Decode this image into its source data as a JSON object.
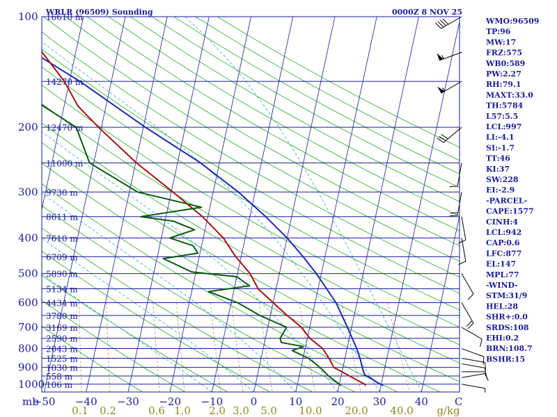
{
  "header": {
    "station": "WRLR (96509) Sounding",
    "time": "0000Z  8 NOV 25"
  },
  "chart_data": {
    "type": "skew-t",
    "title": "WRLR (96509) Sounding",
    "valid_time": "0000Z  8 NOV 25",
    "pressure_ticks": [
      100,
      200,
      300,
      400,
      500,
      600,
      700,
      800,
      900,
      1000
    ],
    "pressure_unit_label": "mb",
    "temperature_ticks": [
      -50,
      -40,
      -30,
      -20,
      -10,
      0,
      10,
      20,
      30,
      40
    ],
    "temperature_tick_labels": [
      "−50",
      "−40",
      "−30",
      "−20",
      "−10",
      "0",
      "10",
      "20",
      "30",
      "40"
    ],
    "temp_unit_label": "C",
    "mixing_ratio_ticks": [
      0.1,
      0.2,
      0.6,
      1.0,
      2.0,
      3.0,
      5.0,
      10.0,
      20.0,
      40.0
    ],
    "mixing_ratio_tick_labels": [
      "0.1",
      "0.2",
      "0.6",
      "1.0",
      "2.0",
      "3.0",
      "5.0",
      "10.0",
      "20.0",
      "40.0"
    ],
    "mixing_ratio_unit_label": "g/kg",
    "height_labels": [
      {
        "p": 100,
        "label": "16610 m"
      },
      {
        "p": 150,
        "label": "14270 m"
      },
      {
        "p": 200,
        "label": "12470 m"
      },
      {
        "p": 250,
        "label": "11000 m"
      },
      {
        "p": 300,
        "label": "9730 m"
      },
      {
        "p": 350,
        "label": "8611 m"
      },
      {
        "p": 400,
        "label": "7610 m"
      },
      {
        "p": 450,
        "label": "6709 m"
      },
      {
        "p": 500,
        "label": "5890 m"
      },
      {
        "p": 550,
        "label": "5134 m"
      },
      {
        "p": 600,
        "label": "4434 m"
      },
      {
        "p": 650,
        "label": "3780 m"
      },
      {
        "p": 700,
        "label": "3169 m"
      },
      {
        "p": 750,
        "label": "2590 m"
      },
      {
        "p": 800,
        "label": "2043 m"
      },
      {
        "p": 850,
        "label": "1525 m"
      },
      {
        "p": 900,
        "label": "1030 m"
      },
      {
        "p": 950,
        "label": "558 m"
      },
      {
        "p": 1000,
        "label": "106 m"
      }
    ],
    "temperature_profile": [
      [
        1008,
        26.4
      ],
      [
        1000,
        26.0
      ],
      [
        950,
        22.0
      ],
      [
        900,
        17.8
      ],
      [
        850,
        16.2
      ],
      [
        800,
        14.2
      ],
      [
        750,
        10.6
      ],
      [
        700,
        8.0
      ],
      [
        650,
        4.0
      ],
      [
        600,
        0.0
      ],
      [
        550,
        -4.3
      ],
      [
        500,
        -7.0
      ],
      [
        450,
        -11.3
      ],
      [
        400,
        -15.2
      ],
      [
        350,
        -21.3
      ],
      [
        300,
        -29.6
      ],
      [
        250,
        -39.8
      ],
      [
        200,
        -50.7
      ],
      [
        175,
        -56.7
      ],
      [
        150,
        -61.2
      ],
      [
        125,
        -68.0
      ],
      [
        100,
        -76.9
      ]
    ],
    "dewpoint_profile": [
      [
        1008,
        20.4
      ],
      [
        1000,
        20.0
      ],
      [
        950,
        17.0
      ],
      [
        900,
        14.5
      ],
      [
        850,
        11.3
      ],
      [
        810,
        7.0
      ],
      [
        790,
        9.5
      ],
      [
        770,
        4.0
      ],
      [
        750,
        3.5
      ],
      [
        700,
        4.5
      ],
      [
        650,
        -2.5
      ],
      [
        600,
        -8.5
      ],
      [
        560,
        -16.0
      ],
      [
        540,
        -6.5
      ],
      [
        510,
        -10.0
      ],
      [
        495,
        -21.0
      ],
      [
        455,
        -28.5
      ],
      [
        440,
        -20.5
      ],
      [
        420,
        -22.0
      ],
      [
        400,
        -28.0
      ],
      [
        380,
        -22.5
      ],
      [
        360,
        -28.0
      ],
      [
        350,
        -36.0
      ],
      [
        330,
        -22.0
      ],
      [
        300,
        -38.0
      ],
      [
        250,
        -51.0
      ],
      [
        200,
        -56.0
      ],
      [
        175,
        -65.0
      ],
      [
        150,
        -74.0
      ],
      [
        135,
        -77.0
      ],
      [
        120,
        -83.0
      ],
      [
        100,
        -93.0
      ]
    ],
    "parcel_profile": [
      [
        1008,
        30.5
      ],
      [
        990,
        29.0
      ],
      [
        960,
        27.0
      ],
      [
        942,
        25.5
      ],
      [
        900,
        24.6
      ],
      [
        850,
        23.6
      ],
      [
        800,
        22.3
      ],
      [
        700,
        19.0
      ],
      [
        600,
        15.0
      ],
      [
        500,
        8.8
      ],
      [
        450,
        4.8
      ],
      [
        400,
        0.0
      ],
      [
        350,
        -6.2
      ],
      [
        300,
        -14.0
      ],
      [
        250,
        -24.5
      ],
      [
        200,
        -39.5
      ],
      [
        150,
        -57.5
      ],
      [
        120,
        -73.0
      ]
    ],
    "wind_barbs": [
      {
        "p": 1000,
        "dir": 100,
        "spd": 5
      },
      {
        "p": 960,
        "dir": 80,
        "spd": 10
      },
      {
        "p": 925,
        "dir": 90,
        "spd": 10
      },
      {
        "p": 880,
        "dir": 100,
        "spd": 10
      },
      {
        "p": 850,
        "dir": 100,
        "spd": 10
      },
      {
        "p": 800,
        "dir": 110,
        "spd": 10
      },
      {
        "p": 700,
        "dir": 120,
        "spd": 10
      },
      {
        "p": 600,
        "dir": 150,
        "spd": 20
      },
      {
        "p": 500,
        "dir": 150,
        "spd": 10
      },
      {
        "p": 400,
        "dir": 170,
        "spd": 10
      },
      {
        "p": 350,
        "dir": 170,
        "spd": 10
      },
      {
        "p": 300,
        "dir": 190,
        "spd": 20
      },
      {
        "p": 250,
        "dir": 190,
        "spd": 10
      },
      {
        "p": 200,
        "dir": 230,
        "spd": 30
      },
      {
        "p": 150,
        "dir": 240,
        "spd": 55
      },
      {
        "p": 125,
        "dir": 250,
        "spd": 55
      },
      {
        "p": 100,
        "dir": 240,
        "spd": 40
      }
    ],
    "colors": {
      "isobar": "#1a1a9a",
      "isotherm": "#1a1a9a",
      "dry_adiabat": "#22aa22",
      "moist_adiabat": "#2aa8c8",
      "mixing_ratio": "#9a9a40",
      "temperature": "#aa1010",
      "dewpoint": "#0a5a10",
      "parcel": "#1a2ab0",
      "wind": "#000000"
    }
  },
  "indices": [
    "WMO:96509",
    "TP:96",
    "MW:17",
    "FRZ:575",
    "WB0:589",
    "PW:2.27",
    "RH:79.1",
    "MAXT:33.0",
    "TH:5784",
    "L57:5.5",
    "LCL:997",
    "LI:-4.1",
    "SI:-1.7",
    "TT:46",
    "KI:37",
    "SW:228",
    "EI:-2.9",
    "-PARCEL-",
    "CAPE:1577",
    "CINH:4",
    "LCL:942",
    "CAP:0.6",
    "LFC:877",
    "EL:147",
    "MPL:77",
    "-WIND-",
    "STM:31/9",
    "HEL:28",
    "SHR+:0.0",
    "SRDS:108",
    "EHI:0.2",
    "BRN:108.7",
    "BSHR:15"
  ]
}
